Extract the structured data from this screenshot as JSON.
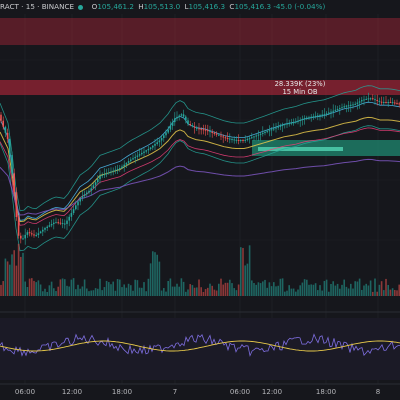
{
  "header": {
    "symbol_text": "RACT · 15 · BINANCE",
    "open_label": "O",
    "open_value": "105,461.2",
    "high_label": "H",
    "high_value": "105,513.0",
    "low_label": "L",
    "low_value": "105,416.3",
    "close_label": "C",
    "close_value": "105,416.3",
    "change_value": "-45.0 (-0.04%)"
  },
  "annotations": {
    "zone_volume": "28.339K (23%)",
    "zone_tf": "15 Min OB"
  },
  "time_axis": [
    "06:00",
    "12:00",
    "18:00",
    "7",
    "06:00",
    "12:00",
    "18:00",
    "8"
  ],
  "colors": {
    "background": "#16171c",
    "bull": "#26a69a",
    "bear": "#ef5350",
    "supply_zone": "#b2263a",
    "demand_zone": "#1f8a70"
  }
}
